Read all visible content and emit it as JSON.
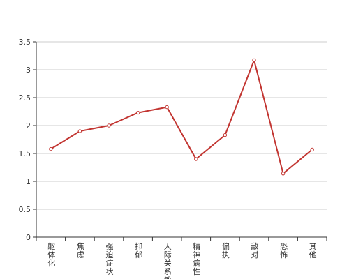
{
  "chart_data": {
    "type": "line",
    "categories": [
      "躯体化",
      "焦虑",
      "强迫症状",
      "抑郁",
      "人际关系敏感",
      "精神病性",
      "偏执",
      "敌对",
      "恐怖",
      "其他"
    ],
    "series": [
      {
        "values": [
          1.58,
          1.9,
          2.0,
          2.23,
          2.33,
          1.4,
          1.83,
          3.17,
          1.14,
          1.57
        ]
      }
    ],
    "ylim": [
      0,
      3.5
    ],
    "yticks": [
      "0",
      "0.5",
      "1",
      "1.5",
      "2",
      "2.5",
      "3",
      "3.5"
    ],
    "grid": true,
    "colors": {
      "line": "#c23531",
      "grid": "#cccccc",
      "axis": "#333333"
    }
  }
}
